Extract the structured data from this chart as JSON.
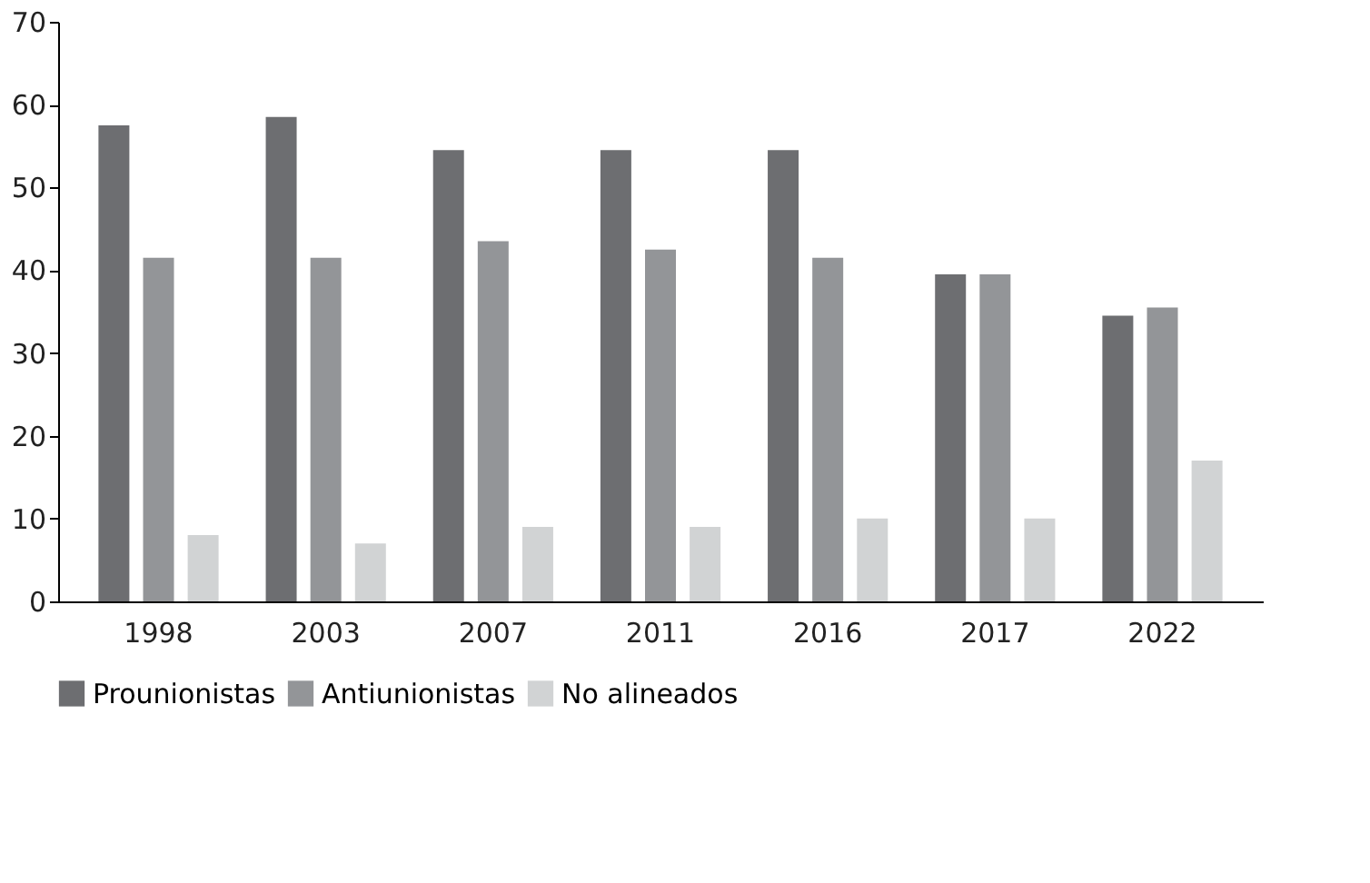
{
  "chart_data": {
    "type": "bar",
    "categories": [
      "1998",
      "2003",
      "2007",
      "2011",
      "2016",
      "2017",
      "2022"
    ],
    "series": [
      {
        "name": "Prounionistas",
        "color": "#6d6e71",
        "values": [
          57.5,
          58.5,
          54.5,
          54.5,
          54.5,
          39.5,
          34.5
        ]
      },
      {
        "name": "Antiunionistas",
        "color": "#939598",
        "values": [
          41.5,
          41.5,
          43.5,
          42.5,
          41.5,
          39.5,
          35.5
        ]
      },
      {
        "name": "No alineados",
        "color": "#d1d3d4",
        "values": [
          8,
          7,
          9,
          9,
          10,
          10,
          17
        ]
      }
    ],
    "ylim": [
      0,
      70
    ],
    "yticks": [
      0,
      10,
      20,
      30,
      40,
      50,
      60,
      70
    ],
    "grid": false,
    "legend": "bottom"
  }
}
